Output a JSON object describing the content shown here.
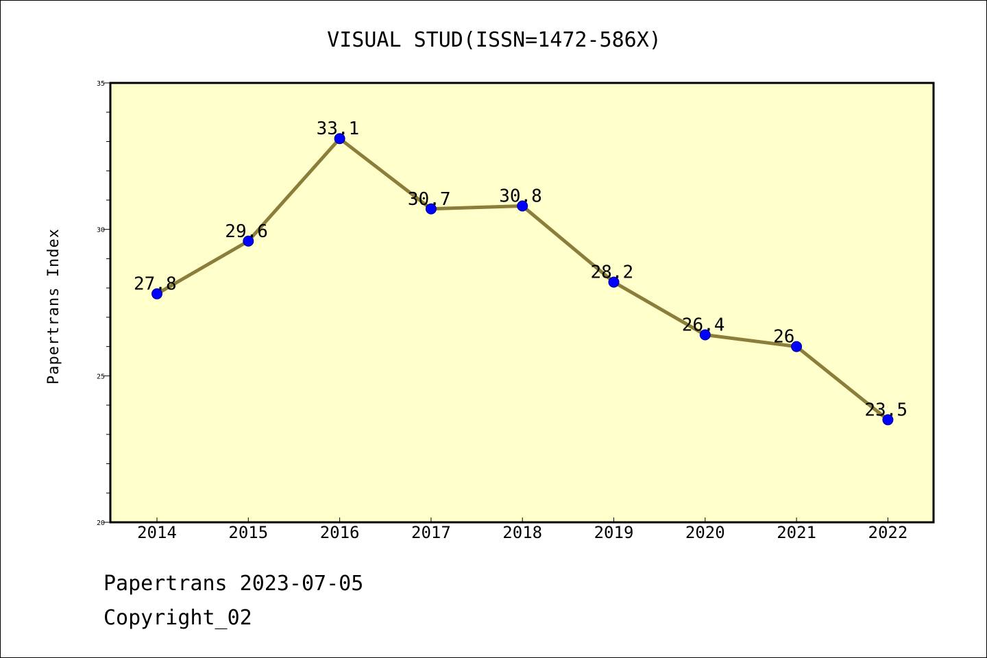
{
  "chart_data": {
    "type": "line",
    "title": "VISUAL STUD(ISSN=1472-586X)",
    "xlabel": "",
    "ylabel": "Papertrans Index",
    "x": [
      "2014",
      "2015",
      "2016",
      "2017",
      "2018",
      "2019",
      "2020",
      "2021",
      "2022"
    ],
    "series": [
      {
        "values": [
          27.8,
          29.6,
          33.1,
          30.7,
          30.8,
          28.2,
          26.4,
          26,
          23.5
        ],
        "data_labels": [
          "27.8",
          "29.6",
          "33.1",
          "30.7",
          "30.8",
          "28.2",
          "26.4",
          "26",
          "23.5"
        ]
      }
    ],
    "ylim": [
      20,
      35
    ],
    "yticks": [
      "20",
      "25",
      "30",
      "35"
    ],
    "y_minor_step": 1,
    "grid": false,
    "legend": "none",
    "colors": {
      "plot_background": "#ffffcc",
      "line": "#8b7d3a",
      "marker": "#0000ff",
      "axes": "#000000"
    }
  },
  "footer": {
    "source_date": "Papertrans 2023-07-05",
    "copyright": "Copyright_02"
  }
}
